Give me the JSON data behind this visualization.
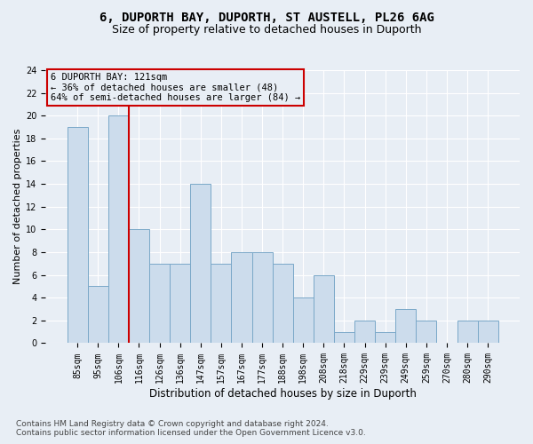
{
  "title_line1": "6, DUPORTH BAY, DUPORTH, ST AUSTELL, PL26 6AG",
  "title_line2": "Size of property relative to detached houses in Duporth",
  "xlabel": "Distribution of detached houses by size in Duporth",
  "ylabel": "Number of detached properties",
  "bar_labels": [
    "85sqm",
    "95sqm",
    "106sqm",
    "116sqm",
    "126sqm",
    "136sqm",
    "147sqm",
    "157sqm",
    "167sqm",
    "177sqm",
    "188sqm",
    "198sqm",
    "208sqm",
    "218sqm",
    "229sqm",
    "239sqm",
    "249sqm",
    "259sqm",
    "270sqm",
    "280sqm",
    "290sqm"
  ],
  "bar_values": [
    19,
    5,
    20,
    10,
    7,
    7,
    14,
    7,
    8,
    8,
    7,
    4,
    6,
    1,
    2,
    1,
    3,
    2,
    0,
    2,
    2
  ],
  "bar_color": "#ccdcec",
  "bar_edge_color": "#7aa8c8",
  "vline_pos": 2.5,
  "vline_color": "#cc0000",
  "annotation_text": "6 DUPORTH BAY: 121sqm\n← 36% of detached houses are smaller (48)\n64% of semi-detached houses are larger (84) →",
  "annotation_box_edgecolor": "#cc0000",
  "ylim_max": 24,
  "yticks": [
    0,
    2,
    4,
    6,
    8,
    10,
    12,
    14,
    16,
    18,
    20,
    22,
    24
  ],
  "footer_line1": "Contains HM Land Registry data © Crown copyright and database right 2024.",
  "footer_line2": "Contains public sector information licensed under the Open Government Licence v3.0.",
  "bg_color": "#e8eef5",
  "grid_color": "#ffffff",
  "title_fontsize": 10,
  "subtitle_fontsize": 9,
  "tick_fontsize": 7,
  "ylabel_fontsize": 8,
  "xlabel_fontsize": 8.5,
  "footer_fontsize": 6.5,
  "annot_fontsize": 7.5
}
